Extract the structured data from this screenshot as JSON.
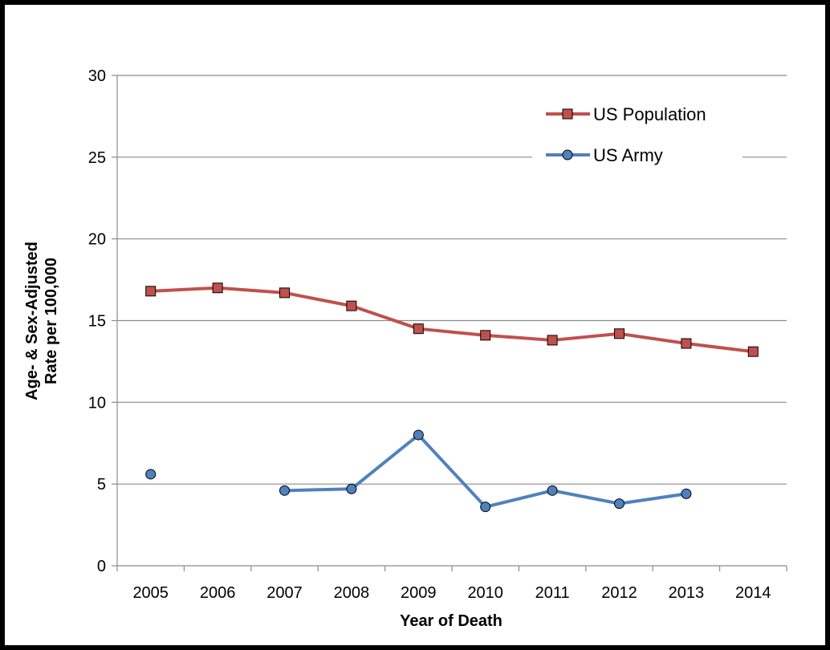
{
  "chart_data": {
    "type": "line",
    "title": "",
    "xlabel": "Year of Death",
    "ylabel_lines": [
      "Age- & Sex-Adjusted",
      "Rate per 100,000"
    ],
    "categories": [
      "2005",
      "2006",
      "2007",
      "2008",
      "2009",
      "2010",
      "2011",
      "2012",
      "2013",
      "2014"
    ],
    "ylim": [
      0,
      30
    ],
    "yticks": [
      0,
      5,
      10,
      15,
      20,
      25,
      30
    ],
    "grid": "horizontal",
    "legend_position": "top-right",
    "series": [
      {
        "name": "US Population",
        "marker": "square",
        "line_color": "#C0504D",
        "marker_fill": "#C0504D",
        "values": [
          16.8,
          17.0,
          16.7,
          15.9,
          14.5,
          14.1,
          13.8,
          14.2,
          13.6,
          13.1
        ]
      },
      {
        "name": "US Army",
        "marker": "circle",
        "line_color": "#4F81BD",
        "marker_fill": "#4F81BD",
        "values": [
          5.6,
          null,
          4.6,
          4.7,
          8.0,
          3.6,
          4.6,
          3.8,
          4.4,
          null
        ]
      }
    ]
  }
}
